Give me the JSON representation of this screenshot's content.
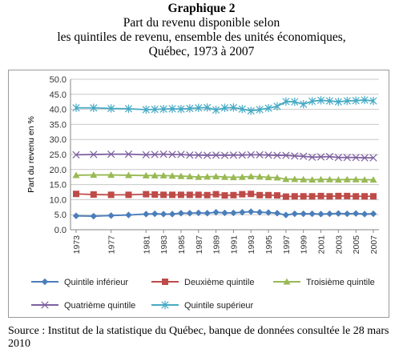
{
  "title": {
    "line1": "Graphique 2",
    "line2": "Part du revenu disponible selon",
    "line3": "les quintiles de revenu, ensemble des unités économiques,",
    "line4": "Québec, 1973 à 2007"
  },
  "source": "Source : Institut de la statistique du Québec, banque de données consultée le 28 mars 2010",
  "chart_data": {
    "type": "line",
    "ylabel": "Part du revenu en %",
    "ylim": [
      0,
      50
    ],
    "yticks": [
      0,
      5,
      10,
      15,
      20,
      25,
      30,
      35,
      40,
      45,
      50
    ],
    "ytick_labels": [
      "0.0",
      "5.0",
      "10.0",
      "15.0",
      "20.0",
      "25.0",
      "30.0",
      "35.0",
      "40.0",
      "45.0",
      "50.0"
    ],
    "grid": true,
    "legend_position": "bottom",
    "x": [
      1973,
      1975,
      1977,
      1979,
      1981,
      1982,
      1983,
      1984,
      1985,
      1986,
      1987,
      1988,
      1989,
      1990,
      1991,
      1992,
      1993,
      1994,
      1995,
      1996,
      1997,
      1998,
      1999,
      2000,
      2001,
      2002,
      2003,
      2004,
      2005,
      2006,
      2007
    ],
    "xtick_labels": [
      "1973",
      "1977",
      "1981",
      "1983",
      "1985",
      "1987",
      "1989",
      "1991",
      "1993",
      "1995",
      "1997",
      "1999",
      "2001",
      "2003",
      "2005",
      "2007"
    ],
    "series": [
      {
        "name": "Quintile inférieur",
        "color": "#4a7ebb",
        "marker": "diamond",
        "values": [
          4.6,
          4.5,
          4.7,
          4.9,
          5.2,
          5.3,
          5.2,
          5.2,
          5.5,
          5.5,
          5.6,
          5.5,
          5.8,
          5.6,
          5.6,
          5.8,
          6.0,
          5.8,
          5.7,
          5.5,
          4.9,
          5.3,
          5.3,
          5.3,
          5.2,
          5.3,
          5.4,
          5.3,
          5.4,
          5.2,
          5.3
        ]
      },
      {
        "name": "Deuxième quintile",
        "color": "#be4b48",
        "marker": "square",
        "values": [
          11.9,
          11.7,
          11.6,
          11.6,
          11.8,
          11.7,
          11.6,
          11.6,
          11.6,
          11.6,
          11.6,
          11.5,
          11.8,
          11.4,
          11.5,
          11.8,
          11.9,
          11.5,
          11.5,
          11.4,
          11.0,
          11.1,
          11.1,
          11.1,
          11.2,
          11.1,
          11.2,
          11.2,
          11.1,
          11.1,
          11.1
        ]
      },
      {
        "name": "Troisième quintile",
        "color": "#98b954",
        "marker": "triangle",
        "values": [
          18.1,
          18.2,
          18.2,
          18.1,
          18.0,
          18.0,
          18.0,
          17.9,
          17.8,
          17.7,
          17.5,
          17.6,
          17.7,
          17.5,
          17.4,
          17.5,
          17.7,
          17.6,
          17.4,
          17.3,
          16.8,
          16.8,
          16.7,
          16.6,
          16.7,
          16.7,
          16.6,
          16.7,
          16.7,
          16.6,
          16.6
        ]
      },
      {
        "name": "Quatrième quintile",
        "color": "#7d60a0",
        "marker": "x",
        "values": [
          24.9,
          25.0,
          25.1,
          25.1,
          24.9,
          25.0,
          25.1,
          25.0,
          25.0,
          24.8,
          24.8,
          24.7,
          24.8,
          24.7,
          24.8,
          24.8,
          24.9,
          24.9,
          24.8,
          24.7,
          24.7,
          24.5,
          24.4,
          24.1,
          24.2,
          24.3,
          24.0,
          24.0,
          24.0,
          23.9,
          23.9
        ]
      },
      {
        "name": "Quintile supérieur",
        "color": "#46aac5",
        "marker": "star",
        "values": [
          40.5,
          40.5,
          40.3,
          40.2,
          39.9,
          40.0,
          40.1,
          40.2,
          40.1,
          40.3,
          40.5,
          40.6,
          39.8,
          40.5,
          40.6,
          40.1,
          39.5,
          39.9,
          40.4,
          41.0,
          42.6,
          42.5,
          41.7,
          42.7,
          43.0,
          42.8,
          42.5,
          42.8,
          42.9,
          43.1,
          42.8
        ]
      }
    ]
  }
}
